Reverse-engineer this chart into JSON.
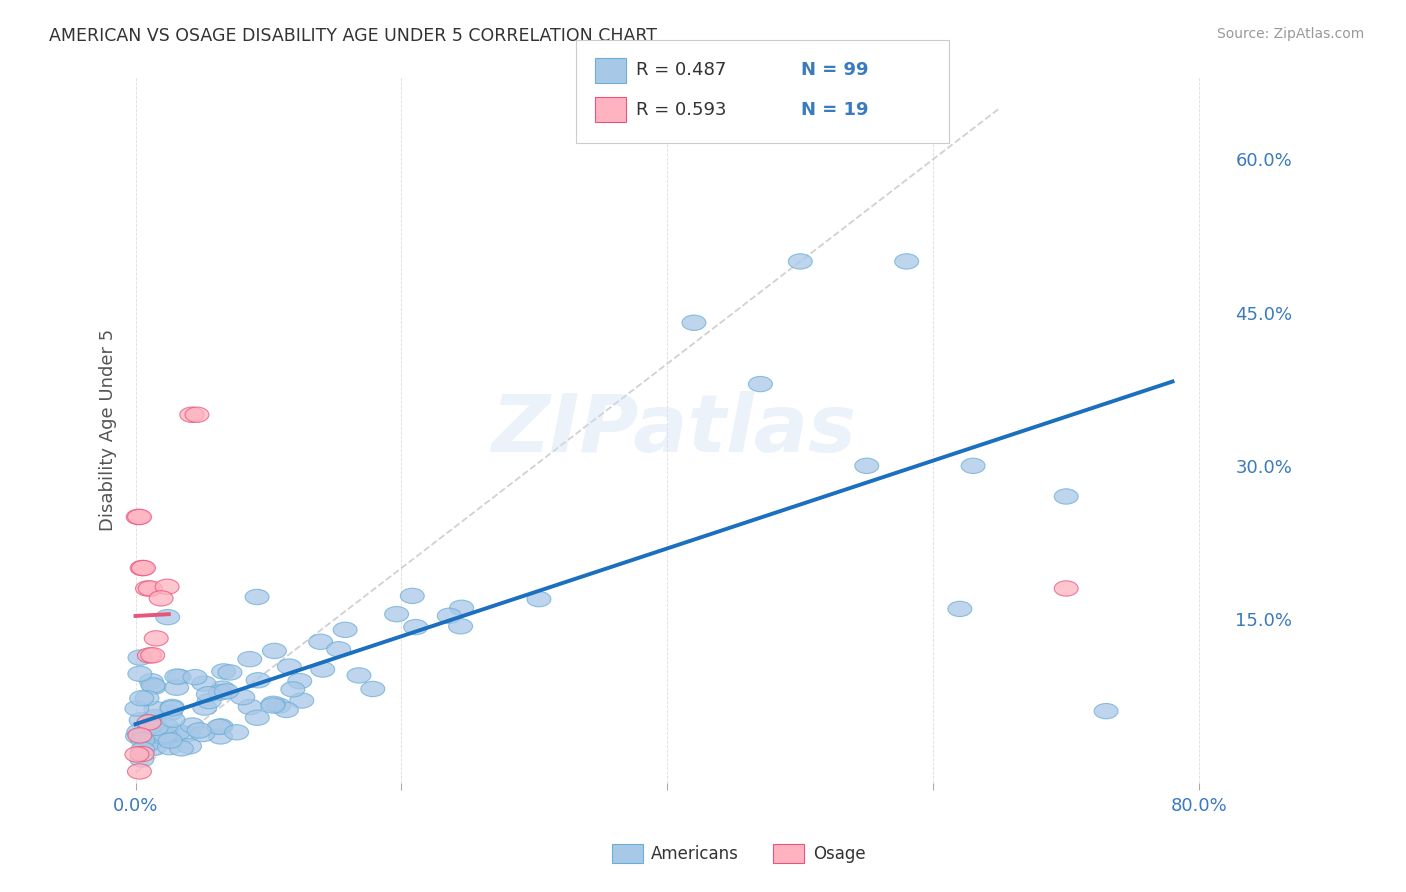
{
  "title": "AMERICAN VS OSAGE DISABILITY AGE UNDER 5 CORRELATION CHART",
  "source": "Source: ZipAtlas.com",
  "ylabel": "Disability Age Under 5",
  "xlim": [
    -0.01,
    0.82
  ],
  "ylim": [
    -0.01,
    0.68
  ],
  "xticks": [
    0.0,
    0.2,
    0.4,
    0.6,
    0.8
  ],
  "xticklabels": [
    "0.0%",
    "",
    "",
    "",
    "80.0%"
  ],
  "right_yticks": [
    0.15,
    0.3,
    0.45,
    0.6
  ],
  "right_yticklabels": [
    "15.0%",
    "30.0%",
    "45.0%",
    "60.0%"
  ],
  "R_americans": 0.487,
  "N_americans": 99,
  "R_osage": 0.593,
  "N_osage": 19,
  "blue_face": "#a8c8e8",
  "blue_edge": "#6baed6",
  "pink_face": "#ffb3c1",
  "pink_edge": "#e8547a",
  "blue_line": "#1a6fbe",
  "pink_line": "#e8547a",
  "title_color": "#333333",
  "source_color": "#999999",
  "tick_color": "#3a7abf",
  "grid_color": "#dddddd",
  "diag_color": "#cccccc",
  "watermark_color": "#d0dff0"
}
